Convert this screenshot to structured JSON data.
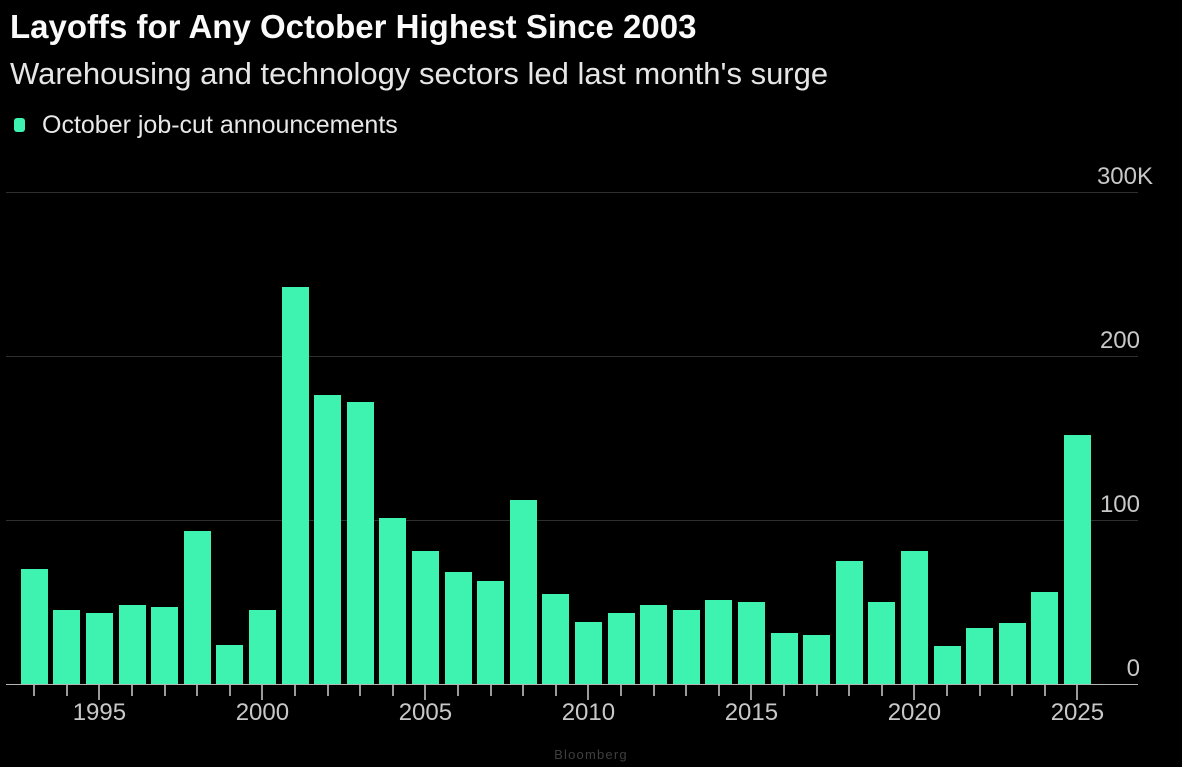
{
  "page": {
    "background": "#000000",
    "credit": "Bloomberg"
  },
  "header": {
    "title": "Layoffs for Any October Highest Since 2003",
    "subtitle": "Warehousing and technology sectors led last month's surge"
  },
  "legend": {
    "items": [
      {
        "label": "October job-cut announcements",
        "swatch_color": "#3EF3B0"
      }
    ]
  },
  "colors": {
    "bar": "#3EF3B0",
    "gridline": "#2f2f2f",
    "axis_line": "#b5b5b5",
    "tick": "#9a9a9a",
    "axis_label": "#c8c8c8",
    "title": "#fafafa",
    "subtitle": "#e6e6e6",
    "credit": "#3f3f3f"
  },
  "chart_data": {
    "type": "bar",
    "title": "Layoffs for Any October Highest Since 2003",
    "subtitle": "Warehousing and technology sectors led last month's surge",
    "values_unit": "thousands of job cuts",
    "grid": "horizontal",
    "legend_position": "top-left",
    "ylim": [
      0,
      300
    ],
    "yticks": [
      {
        "value": 0,
        "label": "0"
      },
      {
        "value": 100,
        "label": "100"
      },
      {
        "value": 200,
        "label": "200"
      },
      {
        "value": 300,
        "label": "300K"
      }
    ],
    "xticks_labeled": [
      1995,
      2000,
      2005,
      2010,
      2015,
      2020,
      2025
    ],
    "categories": [
      1993,
      1994,
      1995,
      1996,
      1997,
      1998,
      1999,
      2000,
      2001,
      2002,
      2003,
      2004,
      2005,
      2006,
      2007,
      2008,
      2009,
      2010,
      2011,
      2012,
      2013,
      2014,
      2015,
      2016,
      2017,
      2018,
      2019,
      2020,
      2021,
      2022,
      2023,
      2024,
      2025
    ],
    "series": [
      {
        "name": "October job-cut announcements",
        "color": "#3EF3B0",
        "values": [
          70,
          45,
          43,
          48,
          47,
          93,
          24,
          45,
          242,
          176,
          172,
          101,
          81,
          68,
          63,
          112,
          55,
          38,
          43,
          48,
          45,
          51,
          50,
          31,
          30,
          75,
          50,
          81,
          23,
          34,
          37,
          56,
          152
        ]
      }
    ],
    "credit": "Bloomberg"
  }
}
